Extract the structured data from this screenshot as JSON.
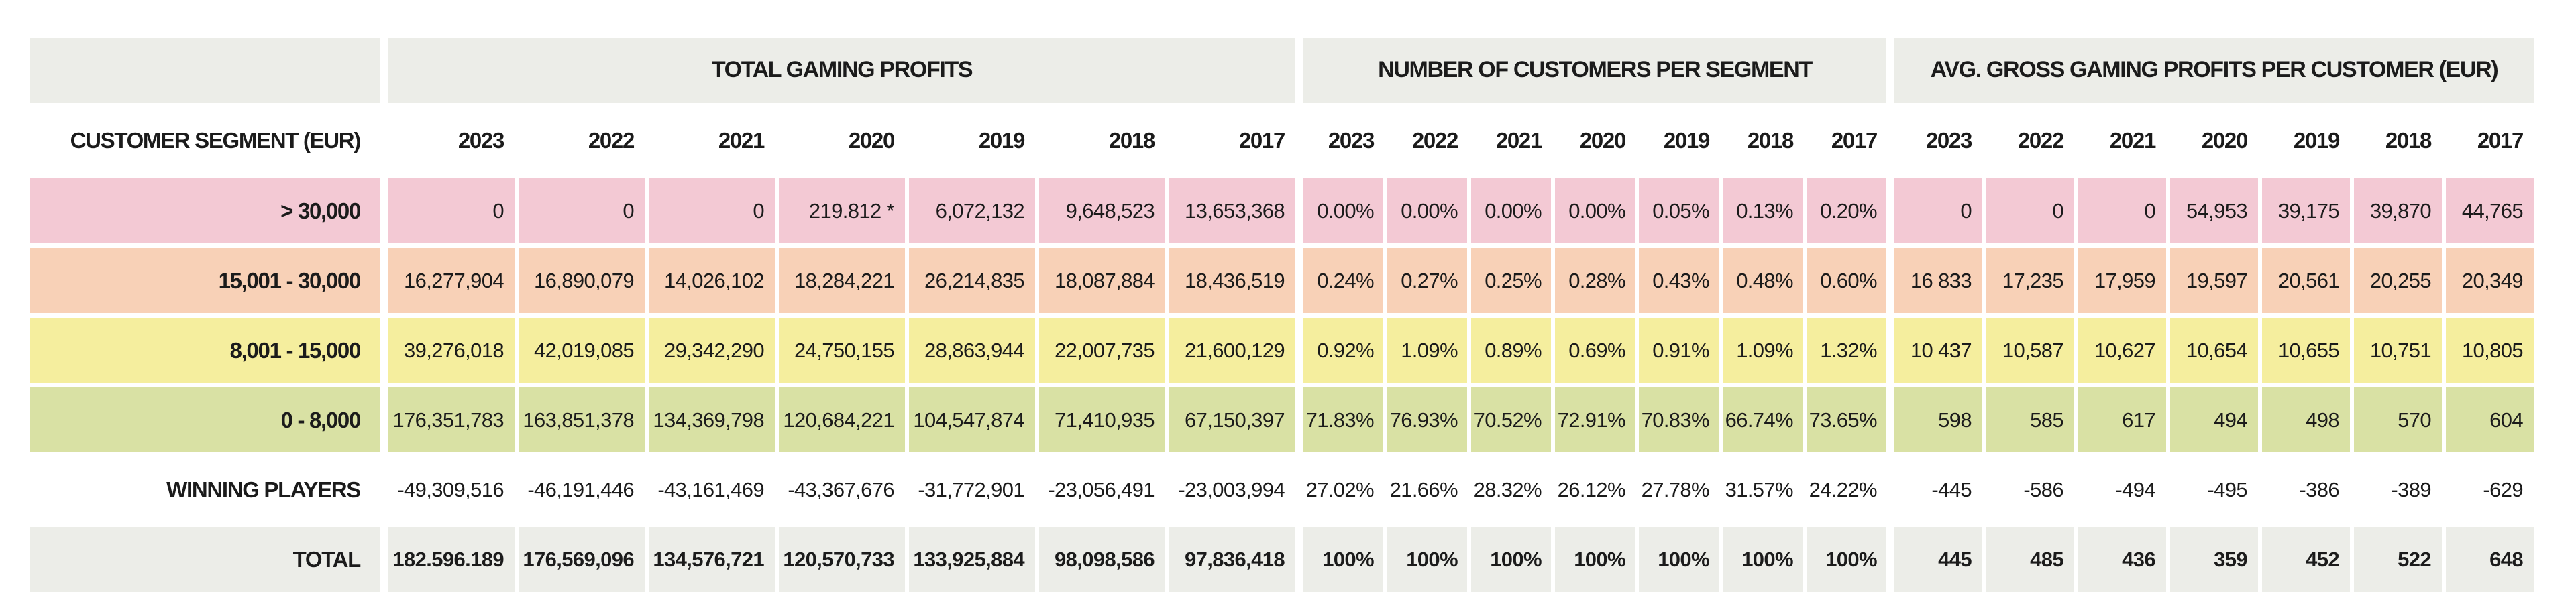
{
  "table": {
    "segment_header": "CUSTOMER SEGMENT (EUR)",
    "years": [
      "2023",
      "2022",
      "2021",
      "2020",
      "2019",
      "2018",
      "2017"
    ],
    "groups": [
      {
        "id": "profits",
        "label": "TOTAL GAMING PROFITS"
      },
      {
        "id": "customers",
        "label": "NUMBER OF CUSTOMERS PER SEGMENT"
      },
      {
        "id": "avg",
        "label": "AVG. GROSS GAMING PROFITS PER CUSTOMER (EUR)"
      }
    ],
    "rows": [
      {
        "label": "> 30,000",
        "color": "pink",
        "is_total": false,
        "profits": [
          "0",
          "0",
          "0",
          "219.812 *",
          "6,072,132",
          "9,648,523",
          "13,653,368"
        ],
        "customers": [
          "0.00%",
          "0.00%",
          "0.00%",
          "0.00%",
          "0.05%",
          "0.13%",
          "0.20%"
        ],
        "avg": [
          "0",
          "0",
          "0",
          "54,953",
          "39,175",
          "39,870",
          "44,765"
        ]
      },
      {
        "label": "15,001 - 30,000",
        "color": "peach",
        "is_total": false,
        "profits": [
          "16,277,904",
          "16,890,079",
          "14,026,102",
          "18,284,221",
          "26,214,835",
          "18,087,884",
          "18,436,519"
        ],
        "customers": [
          "0.24%",
          "0.27%",
          "0.25%",
          "0.28%",
          "0.43%",
          "0.48%",
          "0.60%"
        ],
        "avg": [
          "16 833",
          "17,235",
          "17,959",
          "19,597",
          "20,561",
          "20,255",
          "20,349"
        ]
      },
      {
        "label": "8,001 - 15,000",
        "color": "yellow",
        "is_total": false,
        "profits": [
          "39,276,018",
          "42,019,085",
          "29,342,290",
          "24,750,155",
          "28,863,944",
          "22,007,735",
          "21,600,129"
        ],
        "customers": [
          "0.92%",
          "1.09%",
          "0.89%",
          "0.69%",
          "0.91%",
          "1.09%",
          "1.32%"
        ],
        "avg": [
          "10 437",
          "10,587",
          "10,627",
          "10,654",
          "10,655",
          "10,751",
          "10,805"
        ]
      },
      {
        "label": "0 - 8,000",
        "color": "green",
        "is_total": false,
        "profits": [
          "176,351,783",
          "163,851,378",
          "134,369,798",
          "120,684,221",
          "104,547,874",
          "71,410,935",
          "67,150,397"
        ],
        "customers": [
          "71.83%",
          "76.93%",
          "70.52%",
          "72.91%",
          "70.83%",
          "66.74%",
          "73.65%"
        ],
        "avg": [
          "598",
          "585",
          "617",
          "494",
          "498",
          "570",
          "604"
        ]
      },
      {
        "label": "WINNING PLAYERS",
        "color": "white",
        "is_total": false,
        "profits": [
          "-49,309,516",
          "-46,191,446",
          "-43,161,469",
          "-43,367,676",
          "-31,772,901",
          "-23,056,491",
          "-23,003,994"
        ],
        "customers": [
          "27.02%",
          "21.66%",
          "28.32%",
          "26.12%",
          "27.78%",
          "31.57%",
          "24.22%"
        ],
        "avg": [
          "-445",
          "-586",
          "-494",
          "-495",
          "-386",
          "-389",
          "-629"
        ]
      },
      {
        "label": "TOTAL",
        "color": "neutral",
        "is_total": true,
        "profits": [
          "182.596.189",
          "176,569,096",
          "134,576,721",
          "120,570,733",
          "133,925,884",
          "98,098,586",
          "97,836,418"
        ],
        "customers": [
          "100%",
          "100%",
          "100%",
          "100%",
          "100%",
          "100%",
          "100%"
        ],
        "avg": [
          "445",
          "485",
          "436",
          "359",
          "452",
          "522",
          "648"
        ]
      }
    ]
  },
  "colors": {
    "pink": "#f3c9d4",
    "peach": "#f8d1b7",
    "yellow": "#f5ee9e",
    "green": "#d9e1a4",
    "neutral": "#ecede8",
    "white": "#ffffff",
    "header_fill": "#ecede8",
    "text": "#1b1b1b",
    "background": "#ffffff"
  }
}
